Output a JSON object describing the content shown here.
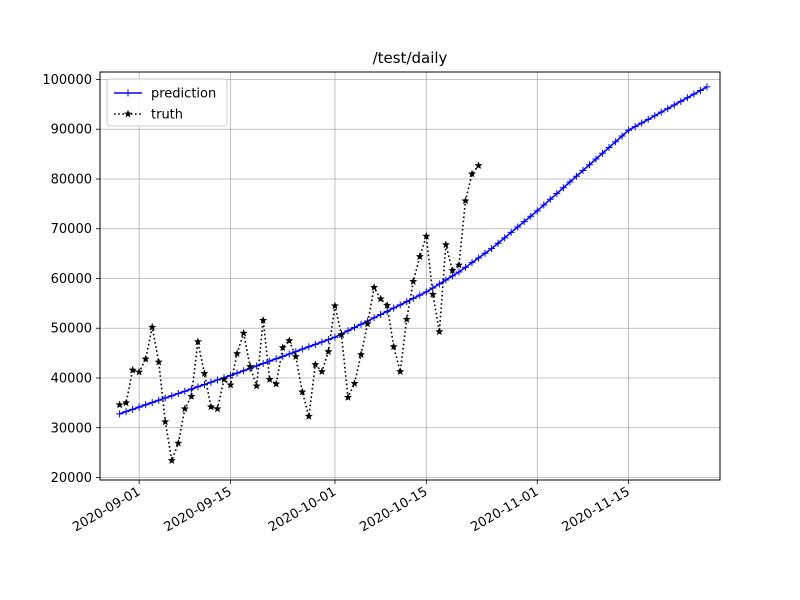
{
  "chart_data": {
    "type": "line",
    "title": "/test/daily",
    "xlabel": "",
    "ylabel": "",
    "x_axis": {
      "kind": "date",
      "range": [
        "2020-08-26",
        "2020-11-29"
      ],
      "ticks": [
        "2020-09-01",
        "2020-09-15",
        "2020-10-01",
        "2020-10-15",
        "2020-11-01",
        "2020-11-15"
      ]
    },
    "y_axis": {
      "range": [
        19500,
        101500
      ],
      "ticks": [
        "20000",
        "30000",
        "40000",
        "50000",
        "60000",
        "70000",
        "80000",
        "90000",
        "100000"
      ]
    },
    "grid": true,
    "legend": {
      "placement": "top-left"
    },
    "series": [
      {
        "name": "prediction",
        "color": "#0000ff",
        "line_style": "solid",
        "marker": "plus",
        "start_date": "2020-08-29",
        "end_date": "2020-11-27",
        "anchors": [
          [
            "2020-08-29",
            32800
          ],
          [
            "2020-09-15",
            40500
          ],
          [
            "2020-10-01",
            48200
          ],
          [
            "2020-10-15",
            57300
          ],
          [
            "2020-10-20",
            61300
          ],
          [
            "2020-10-25",
            66000
          ],
          [
            "2020-11-01",
            73600
          ],
          [
            "2020-11-15",
            89800
          ],
          [
            "2020-11-27",
            98500
          ]
        ]
      },
      {
        "name": "truth",
        "color": "#000000",
        "line_style": "dotted",
        "marker": "star",
        "start_date": "2020-08-29",
        "values": [
          34600,
          35000,
          41600,
          41200,
          43800,
          50200,
          43200,
          31200,
          23400,
          26900,
          33800,
          36300,
          47300,
          40900,
          34200,
          33800,
          39700,
          38600,
          44900,
          49000,
          42300,
          38400,
          51600,
          39700,
          38800,
          46100,
          47500,
          44300,
          37200,
          32300,
          42700,
          41300,
          45300,
          54500,
          48700,
          36100,
          38900,
          44700,
          50900,
          58200,
          55900,
          54600,
          46300,
          41300,
          51800,
          59400,
          64400,
          68500,
          56800,
          49300,
          66800,
          61600,
          62700,
          75600,
          81000,
          82700
        ]
      }
    ]
  }
}
